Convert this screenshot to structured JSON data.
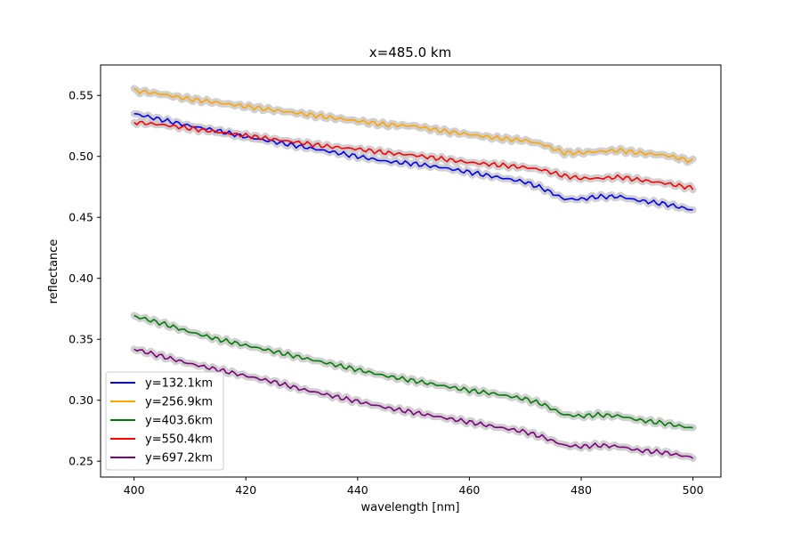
{
  "chart_data": {
    "type": "line",
    "title": "x=485.0 km",
    "xlabel": "wavelength [nm]",
    "ylabel": "reflectance",
    "xlim": [
      394,
      505
    ],
    "ylim": [
      0.237,
      0.575
    ],
    "xticks": [
      400,
      420,
      440,
      460,
      480,
      500
    ],
    "xtick_labels": [
      "400",
      "420",
      "440",
      "460",
      "480",
      "500"
    ],
    "yticks": [
      0.25,
      0.3,
      0.35,
      0.4,
      0.45,
      0.5,
      0.55
    ],
    "ytick_labels": [
      "0.25",
      "0.30",
      "0.35",
      "0.40",
      "0.45",
      "0.50",
      "0.55"
    ],
    "grid": false,
    "legend_position": "lower-left",
    "band_color": "#c8c8c8",
    "x": [
      400,
      405,
      410,
      415,
      420,
      425,
      430,
      435,
      440,
      445,
      450,
      455,
      460,
      465,
      470,
      473,
      477,
      480,
      483,
      487,
      490,
      495,
      500
    ],
    "series": [
      {
        "name": "y=132.1km",
        "color": "#0000ff",
        "values": [
          0.535,
          0.53,
          0.525,
          0.521,
          0.516,
          0.512,
          0.508,
          0.504,
          0.5,
          0.496,
          0.494,
          0.491,
          0.487,
          0.483,
          0.479,
          0.474,
          0.465,
          0.465,
          0.467,
          0.467,
          0.464,
          0.461,
          0.456
        ]
      },
      {
        "name": "y=256.9km",
        "color": "#ffa500",
        "values": [
          0.554,
          0.551,
          0.547,
          0.544,
          0.541,
          0.538,
          0.535,
          0.532,
          0.529,
          0.526,
          0.525,
          0.521,
          0.518,
          0.515,
          0.513,
          0.51,
          0.503,
          0.503,
          0.504,
          0.505,
          0.503,
          0.501,
          0.496
        ]
      },
      {
        "name": "y=403.6km",
        "color": "#008000",
        "values": [
          0.369,
          0.363,
          0.356,
          0.35,
          0.345,
          0.34,
          0.335,
          0.33,
          0.325,
          0.32,
          0.316,
          0.312,
          0.308,
          0.305,
          0.301,
          0.297,
          0.288,
          0.287,
          0.288,
          0.287,
          0.284,
          0.281,
          0.277
        ]
      },
      {
        "name": "y=550.4km",
        "color": "#ff0000",
        "values": [
          0.528,
          0.526,
          0.523,
          0.52,
          0.517,
          0.514,
          0.511,
          0.508,
          0.506,
          0.503,
          0.501,
          0.498,
          0.495,
          0.493,
          0.491,
          0.489,
          0.484,
          0.482,
          0.482,
          0.483,
          0.481,
          0.478,
          0.474
        ]
      },
      {
        "name": "y=697.2km",
        "color": "#800080",
        "values": [
          0.342,
          0.336,
          0.33,
          0.325,
          0.32,
          0.315,
          0.309,
          0.304,
          0.299,
          0.294,
          0.29,
          0.286,
          0.282,
          0.278,
          0.274,
          0.27,
          0.263,
          0.262,
          0.263,
          0.262,
          0.259,
          0.257,
          0.253
        ]
      }
    ]
  }
}
